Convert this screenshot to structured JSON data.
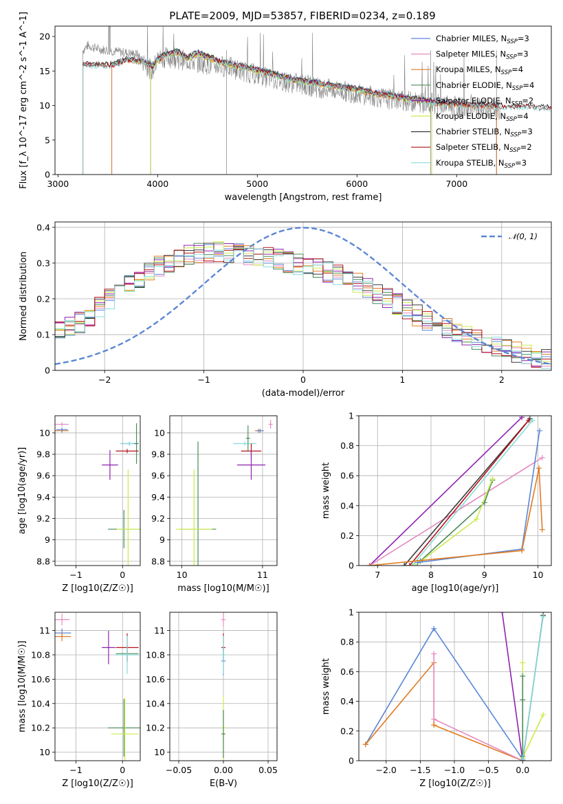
{
  "figure_title": "PLATE=2009, MJD=53857, FIBERID=0234, z=0.189",
  "colors": {
    "Chabrier MILES": "#5b86d6",
    "Salpeter MILES": "#e68ac0",
    "Kroupa MILES": "#e07b20",
    "Chabrier ELODIE": "#4a8a5a",
    "Salpeter ELODIE": "#8f22b0",
    "Kroupa ELODIE": "#cbea4a",
    "Chabrier STELIB": "#3a3a3a",
    "Salpeter STELIB": "#b3121b",
    "Kroupa STELIB": "#86dcd8",
    "data": "#808080",
    "normal": "#5b86d6"
  },
  "legend": [
    "Chabrier MILES, N_SSP=3",
    "Salpeter MILES, N_SSP=3",
    "Kroupa MILES, N_SSP=4",
    "Chabrier ELODIE, N_SSP=4",
    "Salpeter ELODIE, N_SSP=2",
    "Kroupa ELODIE, N_SSP=4",
    "Chabrier STELIB, N_SSP=3",
    "Salpeter STELIB, N_SSP=2",
    "Kroupa STELIB, N_SSP=3"
  ],
  "models": [
    "Chabrier MILES",
    "Salpeter MILES",
    "Kroupa MILES",
    "Chabrier ELODIE",
    "Salpeter ELODIE",
    "Kroupa ELODIE",
    "Chabrier STELIB",
    "Salpeter STELIB",
    "Kroupa STELIB"
  ],
  "chart_data": [
    {
      "id": "spectrum",
      "type": "line",
      "title": "PLATE=2009, MJD=53857, FIBERID=0234, z=0.189",
      "xlabel": "wavelength [Angstrom, rest frame]",
      "ylabel": "Flux [f_λ 10^-17 erg cm^-2 s^-1 A^-1]",
      "xlim": [
        2970,
        7950
      ],
      "ylim": [
        0,
        21.5
      ],
      "xticks": [
        3000,
        4000,
        5000,
        6000,
        7000
      ],
      "yticks": [
        0,
        5,
        10,
        15,
        20
      ],
      "grid": false,
      "legend_position": "top-right",
      "data_continuum": [
        [
          3250,
          18.0
        ],
        [
          3300,
          18.7
        ],
        [
          3400,
          18.2
        ],
        [
          3500,
          18.0
        ],
        [
          3600,
          17.8
        ],
        [
          3700,
          17.6
        ],
        [
          3800,
          17.4
        ],
        [
          3900,
          15.6
        ],
        [
          3950,
          15.0
        ],
        [
          4000,
          16.8
        ],
        [
          4100,
          17.0
        ],
        [
          4300,
          16.5
        ],
        [
          4500,
          16.0
        ],
        [
          4700,
          15.6
        ],
        [
          4900,
          14.8
        ],
        [
          5100,
          14.0
        ],
        [
          5300,
          13.4
        ],
        [
          5500,
          12.9
        ],
        [
          5700,
          12.4
        ],
        [
          5900,
          12.0
        ],
        [
          6100,
          11.5
        ],
        [
          6300,
          11.0
        ],
        [
          6500,
          10.6
        ],
        [
          6700,
          10.4
        ],
        [
          6900,
          10.0
        ],
        [
          7100,
          9.6
        ],
        [
          7300,
          9.4
        ],
        [
          7400,
          9.3
        ]
      ],
      "model_continuum": [
        [
          3550,
          16.0
        ],
        [
          3700,
          16.8
        ],
        [
          3850,
          16.5
        ],
        [
          3950,
          15.8
        ],
        [
          4000,
          16.8
        ],
        [
          4100,
          17.6
        ],
        [
          4200,
          17.9
        ],
        [
          4300,
          17.0
        ],
        [
          4400,
          17.8
        ],
        [
          4600,
          16.6
        ],
        [
          4800,
          15.9
        ],
        [
          5000,
          15.3
        ],
        [
          5200,
          14.5
        ],
        [
          5400,
          13.8
        ],
        [
          5600,
          13.4
        ],
        [
          5800,
          12.9
        ],
        [
          6000,
          12.5
        ],
        [
          6200,
          11.9
        ],
        [
          6400,
          11.4
        ],
        [
          6600,
          11.0
        ],
        [
          6800,
          10.6
        ],
        [
          7000,
          10.4
        ],
        [
          7200,
          10.2
        ],
        [
          7400,
          10.0
        ],
        [
          7950,
          9.8
        ]
      ],
      "series_start_wavelength": {
        "Chabrier MILES": 3540,
        "Salpeter MILES": 3540,
        "Kroupa MILES": 3540,
        "Chabrier ELODIE": 3250,
        "Salpeter ELODIE": 3930,
        "Kroupa ELODIE": 3930,
        "Chabrier STELIB": 3250,
        "Salpeter STELIB": 3250,
        "Kroupa STELIB": 3250
      },
      "series_end_wavelength": {
        "Chabrier MILES": 7400,
        "Salpeter MILES": 7400,
        "Kroupa MILES": 7400,
        "Chabrier ELODIE": 6750,
        "Salpeter ELODIE": 6750,
        "Kroupa ELODIE": 6750,
        "Chabrier STELIB": 7950,
        "Salpeter STELIB": 7950,
        "Kroupa STELIB": 7950
      }
    },
    {
      "id": "residuals",
      "type": "histogram",
      "xlabel": "(data-model)/error",
      "ylabel": "Normed distribution",
      "xlim": [
        -2.5,
        2.5
      ],
      "ylim": [
        0,
        0.415
      ],
      "xticks": [
        -2,
        -1,
        0,
        1,
        2
      ],
      "yticks": [
        0.0,
        0.1,
        0.2,
        0.3,
        0.4
      ],
      "grid": true,
      "legend_position": "top-right",
      "reference_curve": {
        "name": "N(0,1)",
        "label": "𝒩(0, 1)",
        "mean": 0,
        "sigma": 1
      },
      "bin_width": 0.1,
      "envelope": [
        [
          -2.5,
          0.1
        ],
        [
          -2.2,
          0.14
        ],
        [
          -1.9,
          0.21
        ],
        [
          -1.6,
          0.27
        ],
        [
          -1.3,
          0.31
        ],
        [
          -1.0,
          0.33
        ],
        [
          -0.7,
          0.33
        ],
        [
          -0.4,
          0.32
        ],
        [
          -0.1,
          0.3
        ],
        [
          0.2,
          0.28
        ],
        [
          0.5,
          0.25
        ],
        [
          0.8,
          0.21
        ],
        [
          1.1,
          0.16
        ],
        [
          1.4,
          0.12
        ],
        [
          1.7,
          0.09
        ],
        [
          2.0,
          0.06
        ],
        [
          2.3,
          0.04
        ],
        [
          2.5,
          0.03
        ]
      ]
    },
    {
      "id": "age_vs_Z",
      "type": "scatter",
      "xlabel": "Z [log10(Z/Z☉)]",
      "ylabel": "age [log10(age/yr)]",
      "xlim": [
        -1.45,
        0.38
      ],
      "ylim": [
        8.76,
        10.16
      ],
      "xticks": [
        -1,
        0
      ],
      "yticks": [
        8.8,
        9.0,
        9.2,
        9.4,
        9.6,
        9.8,
        10.0
      ],
      "grid": true,
      "points": [
        {
          "model": "Salpeter MILES",
          "x": -1.3,
          "xerr": 0.1,
          "y": 10.08,
          "yerr": 0.0
        },
        {
          "model": "Kroupa MILES",
          "x": -1.3,
          "xerr": 0.1,
          "y": 10.02,
          "yerr": 0.0
        },
        {
          "model": "Chabrier MILES",
          "x": -1.3,
          "xerr": 0.08,
          "y": 10.03,
          "yerr": 0.0
        },
        {
          "model": "Chabrier MILES",
          "x": 0.15,
          "xerr": 0.15,
          "y": 9.9,
          "yerr": 0.0
        },
        {
          "model": "Kroupa STELIB",
          "x": 0.15,
          "xerr": 0.15,
          "y": 9.9,
          "yerr": 0.0
        },
        {
          "model": "Chabrier ELODIE",
          "x": 0.3,
          "xerr": 0.0,
          "y": 9.9,
          "yerr": 0.17
        },
        {
          "model": "Salpeter STELIB",
          "x": 0.1,
          "xerr": 0.2,
          "y": 9.83,
          "yerr": 0.0
        },
        {
          "model": "Salpeter ELODIE",
          "x": -0.27,
          "xerr": 0.13,
          "y": 9.7,
          "yerr": 0.12
        },
        {
          "model": "Chabrier ELODIE",
          "x": 0.03,
          "xerr": 0.3,
          "y": 9.1,
          "yerr": 0.16
        },
        {
          "model": "Kroupa ELODIE",
          "x": 0.12,
          "xerr": 0.2,
          "y": 9.1,
          "yerr": 0.54
        }
      ]
    },
    {
      "id": "age_vs_mass",
      "type": "scatter",
      "xlabel": "mass [log10(M/M☉)]",
      "ylabel": "",
      "xlim": [
        9.85,
        11.18
      ],
      "ylim": [
        8.76,
        10.16
      ],
      "xticks": [
        10,
        11
      ],
      "yticks": [
        8.8,
        9.0,
        9.2,
        9.4,
        9.6,
        9.8,
        10.0
      ],
      "grid": true,
      "points": [
        {
          "model": "Salpeter MILES",
          "x": 11.1,
          "xerr": 0.0,
          "y": 10.08,
          "yerr": 0.02
        },
        {
          "model": "Kroupa MILES",
          "x": 10.95,
          "xerr": 0.02,
          "y": 10.02,
          "yerr": 0.0
        },
        {
          "model": "Chabrier MILES",
          "x": 10.97,
          "xerr": 0.02,
          "y": 10.02,
          "yerr": 0.0
        },
        {
          "model": "Kroupa STELIB",
          "x": 10.78,
          "xerr": 0.12,
          "y": 9.9,
          "yerr": 0.0
        },
        {
          "model": "Chabrier ELODIE",
          "x": 10.82,
          "xerr": 0.0,
          "y": 9.95,
          "yerr": 0.1
        },
        {
          "model": "Salpeter STELIB",
          "x": 10.86,
          "xerr": 0.1,
          "y": 9.83,
          "yerr": 0.05
        },
        {
          "model": "Salpeter ELODIE",
          "x": 10.86,
          "xerr": 0.15,
          "y": 9.7,
          "yerr": 0.12
        },
        {
          "model": "Chabrier ELODIE",
          "x": 10.2,
          "xerr": 0.2,
          "y": 9.1,
          "yerr": 0.8
        },
        {
          "model": "Kroupa ELODIE",
          "x": 10.15,
          "xerr": 0.2,
          "y": 9.1,
          "yerr": 0.54
        }
      ]
    },
    {
      "id": "weight_vs_age",
      "type": "line",
      "xlabel": "age [log10(age/yr)]",
      "ylabel": "mass weight",
      "xlim": [
        6.65,
        10.25
      ],
      "ylim": [
        0.0,
        1.0
      ],
      "xticks": [
        7,
        8,
        9,
        10
      ],
      "yticks": [
        0.0,
        0.2,
        0.4,
        0.6,
        0.8,
        1.0
      ],
      "grid": true,
      "series": [
        {
          "name": "Salpeter ELODIE",
          "points": [
            [
              6.85,
              0.0
            ],
            [
              9.7,
              0.99
            ]
          ]
        },
        {
          "name": "Salpeter MILES",
          "points": [
            [
              6.85,
              0.0
            ],
            [
              10.08,
              0.72
            ]
          ]
        },
        {
          "name": "Chabrier STELIB",
          "points": [
            [
              7.5,
              0.0
            ],
            [
              9.85,
              0.98
            ]
          ]
        },
        {
          "name": "Salpeter STELIB",
          "points": [
            [
              7.6,
              0.0
            ],
            [
              9.83,
              0.97
            ]
          ]
        },
        {
          "name": "Kroupa STELIB",
          "points": [
            [
              7.65,
              0.0
            ],
            [
              9.9,
              0.97
            ]
          ]
        },
        {
          "name": "Chabrier ELODIE",
          "points": [
            [
              7.8,
              0.03
            ],
            [
              9.0,
              0.42
            ],
            [
              9.15,
              0.57
            ]
          ]
        },
        {
          "name": "Kroupa ELODIE",
          "points": [
            [
              7.7,
              0.0
            ],
            [
              8.85,
              0.31
            ],
            [
              9.15,
              0.58
            ]
          ]
        },
        {
          "name": "Chabrier MILES",
          "points": [
            [
              7.75,
              0.02
            ],
            [
              9.7,
              0.11
            ],
            [
              10.03,
              0.9
            ]
          ]
        },
        {
          "name": "Kroupa MILES",
          "points": [
            [
              6.85,
              0.0
            ],
            [
              9.7,
              0.1
            ],
            [
              10.02,
              0.65
            ],
            [
              10.08,
              0.24
            ]
          ]
        }
      ]
    },
    {
      "id": "mass_vs_Z",
      "type": "scatter",
      "xlabel": "Z [log10(Z/Z☉)]",
      "ylabel": "mass [log10(M/M☉)]",
      "xlim": [
        -1.45,
        0.38
      ],
      "ylim": [
        9.93,
        11.15
      ],
      "xticks": [
        -1,
        0
      ],
      "yticks": [
        10.0,
        10.2,
        10.4,
        10.6,
        10.8,
        11.0
      ],
      "grid": true,
      "points": [
        {
          "model": "Salpeter MILES",
          "x": -1.3,
          "xerr": 0.12,
          "y": 11.09,
          "yerr": 0.03
        },
        {
          "model": "Chabrier MILES",
          "x": -1.3,
          "xerr": 0.15,
          "y": 10.98,
          "yerr": 0.02
        },
        {
          "model": "Kroupa MILES",
          "x": -1.3,
          "xerr": 0.15,
          "y": 10.95,
          "yerr": 0.02
        },
        {
          "model": "Salpeter STELIB",
          "x": 0.1,
          "xerr": 0.2,
          "y": 10.86,
          "yerr": 0.1
        },
        {
          "model": "Salpeter ELODIE",
          "x": -0.3,
          "xerr": 0.1,
          "y": 10.86,
          "yerr": 0.12
        },
        {
          "model": "Chabrier ELODIE",
          "x": 0.1,
          "xerr": 0.2,
          "y": 10.81,
          "yerr": 0.05
        },
        {
          "model": "Kroupa STELIB",
          "x": 0.1,
          "xerr": 0.2,
          "y": 10.8,
          "yerr": 0.14
        },
        {
          "model": "Chabrier ELODIE",
          "x": 0.03,
          "xerr": 0.3,
          "y": 10.2,
          "yerr": 0.22
        },
        {
          "model": "Kroupa ELODIE",
          "x": 0.05,
          "xerr": 0.25,
          "y": 10.15,
          "yerr": 0.28
        }
      ]
    },
    {
      "id": "mass_vs_EBV",
      "type": "scatter",
      "xlabel": "E(B-V)",
      "ylabel": "",
      "xlim": [
        -0.06,
        0.06
      ],
      "ylim": [
        9.93,
        11.15
      ],
      "xticks": [
        -0.05,
        0.0,
        0.05
      ],
      "xtick_labels": [
        "−0.05",
        "0.00",
        "0.05"
      ],
      "yticks": [
        10.0,
        10.2,
        10.4,
        10.6,
        10.8,
        11.0
      ],
      "grid": true,
      "points": [
        {
          "model": "Salpeter MILES",
          "x": 0.0,
          "xerr": 0.0,
          "y": 11.09,
          "yerr": 0.04
        },
        {
          "model": "Salpeter STELIB",
          "x": 0.0,
          "xerr": 0.0,
          "y": 10.86,
          "yerr": 0.1
        },
        {
          "model": "Chabrier MILES",
          "x": 0.0,
          "xerr": 0.0,
          "y": 10.75,
          "yerr": 0.1
        },
        {
          "model": "Kroupa STELIB",
          "x": 0.0,
          "xerr": 0.0,
          "y": 10.8,
          "yerr": 0.14
        },
        {
          "model": "Kroupa ELODIE",
          "x": 0.0,
          "xerr": 0.0,
          "y": 10.2,
          "yerr": 0.25
        },
        {
          "model": "Chabrier ELODIE",
          "x": 0.0,
          "xerr": 0.0,
          "y": 10.15,
          "yerr": 0.18
        }
      ]
    },
    {
      "id": "weight_vs_Z",
      "type": "line",
      "xlabel": "Z [log10(Z/Z☉)]",
      "ylabel": "mass weight",
      "xlim": [
        -2.4,
        0.42
      ],
      "ylim": [
        0.0,
        1.0
      ],
      "xticks": [
        -2.0,
        -1.5,
        -1.0,
        -0.5,
        0.0
      ],
      "xtick_labels": [
        "−2.0",
        "−1.5",
        "−1.0",
        "−0.5",
        "0.0"
      ],
      "yticks": [
        0.0,
        0.2,
        0.4,
        0.6,
        0.8,
        1.0
      ],
      "grid": true,
      "series": [
        {
          "name": "Chabrier MILES",
          "points": [
            [
              -2.3,
              0.11
            ],
            [
              -1.3,
              0.89
            ],
            [
              0.0,
              0.01
            ]
          ]
        },
        {
          "name": "Kroupa MILES",
          "points": [
            [
              -2.3,
              0.11
            ],
            [
              -1.3,
              0.66
            ],
            [
              -1.3,
              0.24
            ],
            [
              0.0,
              0.0
            ]
          ]
        },
        {
          "name": "Salpeter MILES",
          "points": [
            [
              -1.3,
              0.72
            ],
            [
              -1.3,
              0.28
            ],
            [
              0.0,
              0.0
            ]
          ]
        },
        {
          "name": "Salpeter ELODIE",
          "points": [
            [
              -0.3,
              1.0
            ],
            [
              0.0,
              0.0
            ]
          ]
        },
        {
          "name": "Kroupa ELODIE",
          "points": [
            [
              0.0,
              0.66
            ],
            [
              0.0,
              0.02
            ],
            [
              0.3,
              0.31
            ]
          ]
        },
        {
          "name": "Chabrier ELODIE",
          "points": [
            [
              0.0,
              0.57
            ],
            [
              0.0,
              0.41
            ],
            [
              0.0,
              0.03
            ]
          ]
        },
        {
          "name": "Chabrier STELIB",
          "points": [
            [
              0.0,
              0.0
            ],
            [
              0.3,
              0.98
            ]
          ]
        },
        {
          "name": "Kroupa STELIB",
          "points": [
            [
              0.0,
              0.01
            ],
            [
              0.3,
              0.97
            ]
          ]
        }
      ]
    }
  ]
}
